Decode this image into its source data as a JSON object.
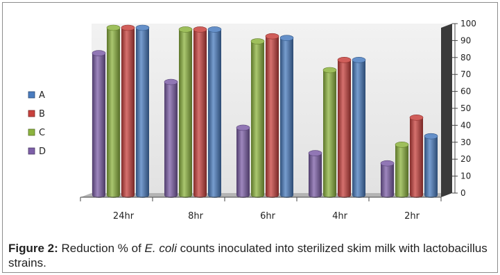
{
  "chart_data": {
    "type": "bar",
    "categories": [
      "24hr",
      "8hr",
      "6hr",
      "4hr",
      "2hr"
    ],
    "series": [
      {
        "name": "D",
        "color": "#7d5fa8",
        "values": [
          85,
          68,
          41,
          26,
          20
        ]
      },
      {
        "name": "C",
        "color": "#8db43f",
        "values": [
          100,
          99,
          92,
          75,
          31
        ]
      },
      {
        "name": "B",
        "color": "#c8413d",
        "values": [
          100,
          99,
          95,
          81,
          47
        ]
      },
      {
        "name": "A",
        "color": "#4a7cbf",
        "values": [
          100,
          99,
          94,
          81,
          36
        ]
      }
    ],
    "legend_order": [
      "A",
      "B",
      "C",
      "D"
    ],
    "ylim": [
      0,
      100
    ],
    "yticks": [
      0,
      10,
      20,
      30,
      40,
      50,
      60,
      70,
      80,
      90,
      100
    ],
    "legend_position": "left",
    "y_axis_position": "right",
    "style": "3d-cylinder",
    "grid": false
  },
  "caption": {
    "label": "Figure 2:",
    "pre": " Reduction % of ",
    "species": "E. coli",
    "post": " counts inoculated into sterilized skim milk with lactobacillus strains."
  }
}
